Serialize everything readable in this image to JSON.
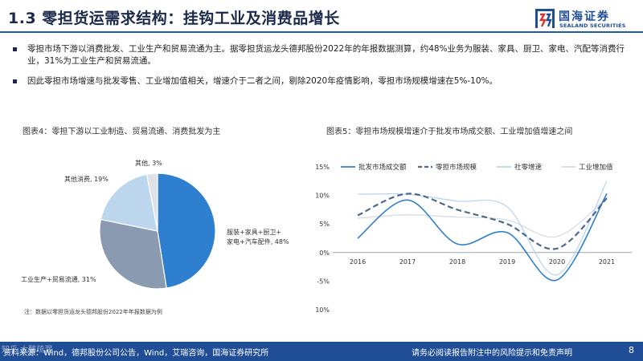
{
  "header": {
    "title": "1.3 零担货运需求结构：挂钩工业及消费品增长",
    "logo_cn": "国海证券",
    "logo_en": "SEALAND SECURITIES"
  },
  "bullets": [
    "零担市场下游以消费批发、工业生产和贸易流通为主。据零担货运龙头德邦股份2022年的年报数据测算，约48%业务为服装、家具、厨卫、家电、汽配等消费行业，31%为工业生产和贸易流通。",
    "因此零担市场增速与批发零售、工业增加值相关，增速介于二者之间，剔除2020年疫情影响，零担市场规模增速在5%-10%。"
  ],
  "figure4": {
    "title": "图表4：零担下游以工业制造、贸易流通、消费批发为主",
    "note": "注：数据以零担货运龙头德邦股份2022年年报数据为例",
    "chart_data": {
      "type": "pie",
      "slices": [
        {
          "label_line1": "服装+家具+厨卫+",
          "label_line2": "家电+汽车配件, 48%",
          "value": 48,
          "color": "#2f7fd1"
        },
        {
          "label_line1": "工业生产+贸易流通, 31%",
          "label_line2": "",
          "value": 31,
          "color": "#8a9ab0"
        },
        {
          "label_line1": "其他消费, 19%",
          "label_line2": "",
          "value": 19,
          "color": "#bcd6ee"
        },
        {
          "label_line1": "其他, 3%",
          "label_line2": "",
          "value": 3,
          "color": "#dfe3e8"
        }
      ]
    }
  },
  "figure5": {
    "title": "图表5：零担市场规模增速介于批发市场成交额、工业增加值增速之间",
    "chart_data": {
      "type": "line",
      "categories": [
        "2016",
        "2017",
        "2018",
        "2019",
        "2020",
        "2021"
      ],
      "ylim": [
        -10,
        15
      ],
      "yticks": [
        -10,
        -5,
        0,
        5,
        10,
        15
      ],
      "ytick_labels": [
        "-10%",
        "-5%",
        "0%",
        "5%",
        "10%",
        "15%"
      ],
      "series": [
        {
          "name": "批发市场成交额",
          "values": [
            2.5,
            9.2,
            1.5,
            3.5,
            -4.8,
            10.3
          ],
          "color": "#2f7fd1",
          "style": "solid",
          "width": 1.6
        },
        {
          "name": "零担市场规模",
          "values": [
            6.5,
            10.3,
            7.5,
            5.0,
            0.7,
            9.5
          ],
          "color": "#4e6b8c",
          "style": "dash",
          "width": 2.2
        },
        {
          "name": "社零增速",
          "values": [
            10.2,
            10.2,
            9.0,
            8.0,
            -3.9,
            12.5
          ],
          "color": "#bcd6ee",
          "style": "solid",
          "width": 1.3
        },
        {
          "name": "工业增加值",
          "values": [
            6.0,
            6.6,
            6.2,
            5.7,
            2.8,
            9.6
          ],
          "color": "#d7dde5",
          "style": "solid",
          "width": 1.3
        }
      ]
    }
  },
  "footer": {
    "source": "资料来源：Wind，德邦股份公司公告，Wind，艾瑞咨询，国海证券研究所",
    "disclaimer": "请务必阅读报告附注中的风险提示和免责声明",
    "page": "8",
    "watermark": "知乎 大鹏疏漏"
  }
}
